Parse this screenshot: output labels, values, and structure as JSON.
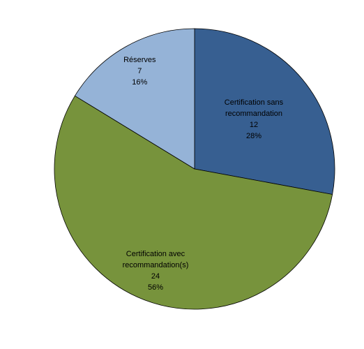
{
  "chart_data": {
    "type": "pie",
    "categories": [
      "Certification sans recommandation",
      "Certification avec recommandation(s)",
      "Réserves"
    ],
    "values": [
      12,
      24,
      7
    ],
    "percent_labels": [
      "28%",
      "56%",
      "16%"
    ],
    "colors": [
      "#375f91",
      "#77933c",
      "#95b3d7"
    ]
  }
}
